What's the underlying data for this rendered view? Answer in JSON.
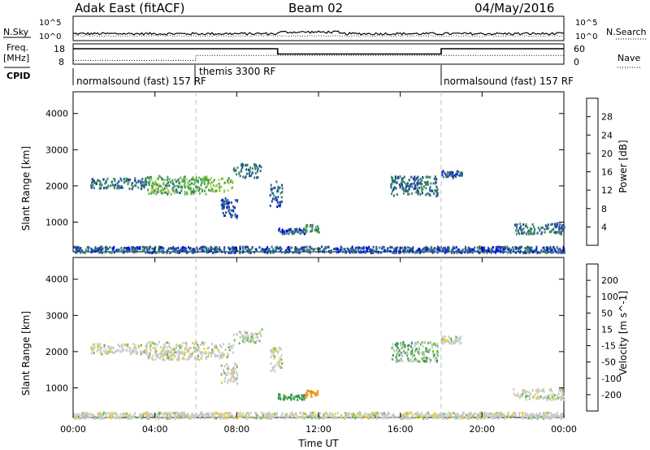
{
  "header": {
    "station": "Adak East (fitACF)",
    "beam": "Beam 02",
    "date": "04/May/2016"
  },
  "noise_panel": {
    "left_label": "N.Sky",
    "right_label": "N.Search",
    "left_ticks": [
      "10^5",
      "10^0"
    ],
    "right_ticks": [
      "10^5",
      "10^0"
    ]
  },
  "freq_panel": {
    "left_label": "Freq.",
    "left_unit": "[MHz]",
    "left_ticks": [
      "18",
      "8"
    ],
    "right_label": "Nave",
    "right_ticks": [
      "60",
      "0"
    ],
    "cpid_label": "CPID",
    "cpid_segments": [
      {
        "text": "normalsound (fast) 157 RF",
        "start_h": 0,
        "end_h": 6
      },
      {
        "text": "themis 3300 RF",
        "start_h": 6,
        "end_h": 18
      },
      {
        "text": "normalsound (fast) 157 RF",
        "start_h": 18,
        "end_h": 24
      }
    ],
    "freq_steps": [
      [
        0,
        15.6
      ],
      [
        10.0,
        15.6
      ],
      [
        10.0,
        13.0
      ],
      [
        18.0,
        13.0
      ],
      [
        18.0,
        15.6
      ],
      [
        24,
        15.6
      ]
    ],
    "nave_steps": [
      [
        0,
        11
      ],
      [
        6,
        11
      ],
      [
        6,
        26
      ],
      [
        24,
        26
      ]
    ]
  },
  "power_panel": {
    "ylabel": "Slant Range [km]",
    "yticks": [
      "4000",
      "3000",
      "2000",
      "1000"
    ],
    "colorbar_label": "Power [dB]",
    "colorbar_ticks": [
      "28",
      "24",
      "20",
      "16",
      "12",
      "8",
      "4"
    ],
    "colorbar_colors": [
      "#0000ff",
      "#1e3da8",
      "#2a6e7e",
      "#3e9058",
      "#66be48",
      "#b0d040",
      "#f0d010",
      "#f0a020",
      "#f07010",
      "#e83018",
      "#e00000"
    ]
  },
  "velocity_panel": {
    "ylabel": "Slant Range [km]",
    "yticks": [
      "4000",
      "3000",
      "2000",
      "1000"
    ],
    "colorbar_label": "Velocity [m s^-1]",
    "colorbar_ticks": [
      "200",
      "100",
      "50",
      "15",
      "-15",
      "-50",
      "-100",
      "-200"
    ],
    "colorbar_colors": [
      "#1e3da8",
      "#2a70a0",
      "#3a9060",
      "#66be48",
      "#c8c8c8",
      "#f0d010",
      "#f0a020",
      "#f07010",
      "#e83018",
      "#e00000"
    ]
  },
  "xaxis": {
    "label": "Time UT",
    "ticks": [
      "00:00",
      "04:00",
      "08:00",
      "12:00",
      "16:00",
      "20:00",
      "00:00"
    ]
  },
  "chart_data": {
    "type": "heatmap",
    "title": "Adak East (fitACF) Beam 02 04/May/2016",
    "xlabel": "Time UT",
    "ylabel": "Slant Range [km]",
    "xlim_hours": [
      0,
      24
    ],
    "ylim_km": [
      180,
      4600
    ],
    "markers_h": [
      6,
      18
    ],
    "clusters": [
      {
        "t0": 0.8,
        "t1": 3.6,
        "r0": 1950,
        "r1": 2250,
        "power": 8,
        "vel": 0
      },
      {
        "t0": 3.6,
        "t1": 6.5,
        "r0": 1800,
        "r1": 2300,
        "power": 12,
        "vel": 0
      },
      {
        "t0": 6.5,
        "t1": 7.8,
        "r0": 1850,
        "r1": 2250,
        "power": 14,
        "vel": 0
      },
      {
        "t0": 7.8,
        "t1": 9.2,
        "r0": 2250,
        "r1": 2650,
        "power": 8,
        "vel": 5
      },
      {
        "t0": 7.2,
        "t1": 8.0,
        "r0": 1150,
        "r1": 1700,
        "power": 6,
        "vel": 0
      },
      {
        "t0": 9.6,
        "t1": 10.2,
        "r0": 1450,
        "r1": 2150,
        "power": 6,
        "vel": 0
      },
      {
        "t0": 10.0,
        "t1": 11.3,
        "r0": 700,
        "r1": 850,
        "power": 6,
        "vel": 40
      },
      {
        "t0": 11.3,
        "t1": 12.0,
        "r0": 750,
        "r1": 950,
        "power": 10,
        "vel": -60
      },
      {
        "t0": 15.5,
        "t1": 17.8,
        "r0": 1750,
        "r1": 2300,
        "power": 7,
        "vel": 20
      },
      {
        "t0": 18.0,
        "t1": 19.0,
        "r0": 2250,
        "r1": 2450,
        "power": 6,
        "vel": 0
      },
      {
        "t0": 21.5,
        "t1": 24.0,
        "r0": 700,
        "r1": 1000,
        "power": 8,
        "vel": 0
      },
      {
        "t0": 0.0,
        "t1": 24.0,
        "r0": 180,
        "r1": 350,
        "power": 6,
        "vel": 0
      }
    ]
  }
}
